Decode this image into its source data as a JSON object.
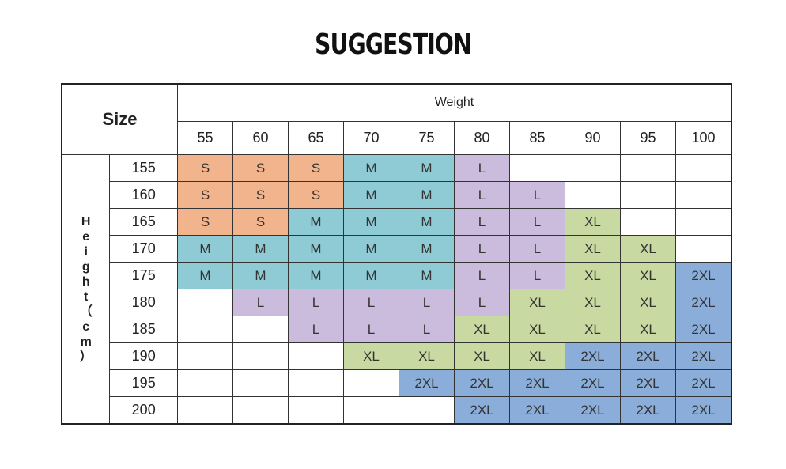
{
  "title": "SUGGESTION",
  "table": {
    "corner_label": "Size",
    "weight_label": "Weight",
    "height_label": [
      "H",
      "e",
      "i",
      "g",
      "h",
      "t",
      "（",
      "c",
      "m",
      "）"
    ],
    "weights": [
      "55",
      "60",
      "65",
      "70",
      "75",
      "80",
      "85",
      "90",
      "95",
      "100"
    ],
    "rows": [
      {
        "height": "155",
        "sizes": [
          "S",
          "S",
          "S",
          "M",
          "M",
          "L",
          "",
          "",
          "",
          ""
        ]
      },
      {
        "height": "160",
        "sizes": [
          "S",
          "S",
          "S",
          "M",
          "M",
          "L",
          "L",
          "",
          "",
          ""
        ]
      },
      {
        "height": "165",
        "sizes": [
          "S",
          "S",
          "M",
          "M",
          "M",
          "L",
          "L",
          "XL",
          "",
          ""
        ]
      },
      {
        "height": "170",
        "sizes": [
          "M",
          "M",
          "M",
          "M",
          "M",
          "L",
          "L",
          "XL",
          "XL",
          ""
        ]
      },
      {
        "height": "175",
        "sizes": [
          "M",
          "M",
          "M",
          "M",
          "M",
          "L",
          "L",
          "XL",
          "XL",
          "2XL"
        ]
      },
      {
        "height": "180",
        "sizes": [
          "",
          "L",
          "L",
          "L",
          "L",
          "L",
          "XL",
          "XL",
          "XL",
          "2XL"
        ]
      },
      {
        "height": "185",
        "sizes": [
          "",
          "",
          "L",
          "L",
          "L",
          "XL",
          "XL",
          "XL",
          "XL",
          "2XL"
        ]
      },
      {
        "height": "190",
        "sizes": [
          "",
          "",
          "",
          "XL",
          "XL",
          "XL",
          "XL",
          "2XL",
          "2XL",
          "2XL"
        ]
      },
      {
        "height": "195",
        "sizes": [
          "",
          "",
          "",
          "",
          "2XL",
          "2XL",
          "2XL",
          "2XL",
          "2XL",
          "2XL"
        ]
      },
      {
        "height": "200",
        "sizes": [
          "",
          "",
          "",
          "",
          "",
          "2XL",
          "2XL",
          "2XL",
          "2XL",
          "2XL"
        ]
      }
    ]
  },
  "colors": {
    "S": "#f2b48c",
    "M": "#8ecbd4",
    "L": "#cbbbdd",
    "XL": "#c8daa2",
    "2XL": "#8aaed9"
  }
}
